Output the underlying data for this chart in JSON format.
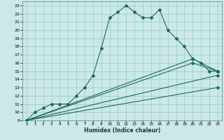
{
  "xlabel": "Humidex (Indice chaleur)",
  "bg_color": "#cce8e8",
  "grid_color": "#9ecece",
  "line_color": "#1a6b5a",
  "xlim": [
    -0.5,
    23.5
  ],
  "ylim": [
    9,
    23.5
  ],
  "x_ticks": [
    0,
    1,
    2,
    3,
    4,
    5,
    6,
    7,
    8,
    9,
    10,
    11,
    12,
    13,
    14,
    15,
    16,
    17,
    18,
    19,
    20,
    21,
    22,
    23
  ],
  "y_ticks": [
    9,
    10,
    11,
    12,
    13,
    14,
    15,
    16,
    17,
    18,
    19,
    20,
    21,
    22,
    23
  ],
  "line1_x": [
    0,
    1,
    2,
    3,
    4,
    5,
    6,
    7,
    8,
    9,
    10,
    11,
    12,
    13,
    14,
    15,
    16,
    17,
    18,
    19,
    20,
    21,
    22,
    23
  ],
  "line1_y": [
    9,
    10.0,
    10.5,
    11.0,
    11.0,
    11.0,
    12.0,
    13.0,
    14.5,
    17.8,
    21.5,
    22.2,
    23.0,
    22.2,
    21.5,
    21.5,
    22.5,
    20.0,
    19.0,
    18.0,
    16.5,
    16.0,
    15.0,
    15.0
  ],
  "line2_x": [
    0,
    20,
    23
  ],
  "line2_y": [
    9,
    16.5,
    15.0
  ],
  "line3_x": [
    0,
    20,
    23
  ],
  "line3_y": [
    9,
    16.0,
    15.0
  ],
  "line4_x": [
    0,
    23
  ],
  "line4_y": [
    9,
    14.5
  ],
  "line5_x": [
    0,
    23
  ],
  "line5_y": [
    9,
    13.0
  ]
}
